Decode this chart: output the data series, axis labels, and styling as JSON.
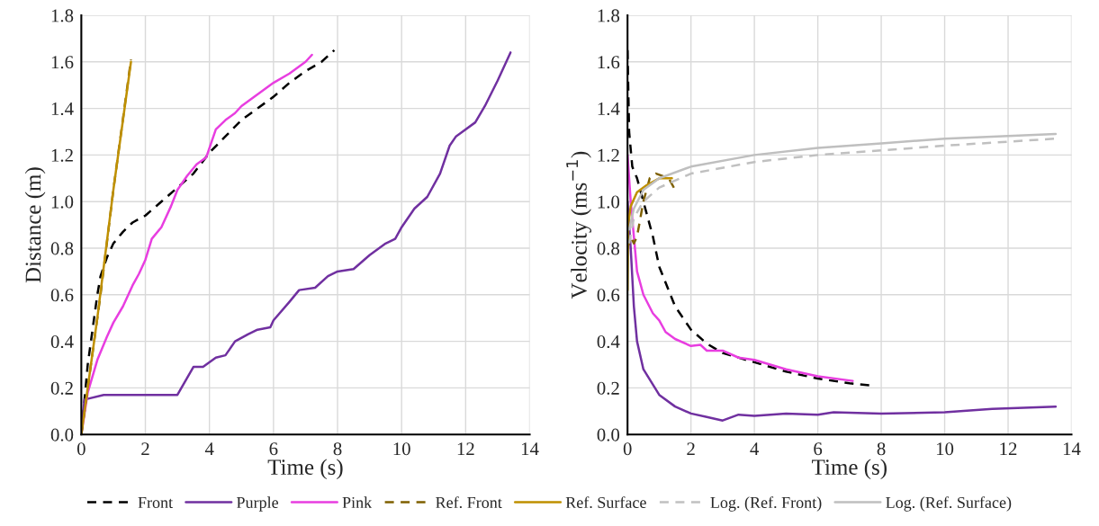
{
  "chart_data": [
    {
      "type": "line",
      "xlabel": "Time (s)",
      "ylabel": "Distance (m)",
      "xlim": [
        0,
        14
      ],
      "ylim": [
        0,
        1.8
      ],
      "xticks": [
        0,
        2,
        4,
        6,
        8,
        10,
        12,
        14
      ],
      "yticks": [
        {
          "value": 0,
          "label": "0.0"
        },
        {
          "value": 0.2,
          "label": "0.2"
        },
        {
          "value": 0.4,
          "label": "0.4"
        },
        {
          "value": 0.6,
          "label": "0.6"
        },
        {
          "value": 0.8,
          "label": "0.8"
        },
        {
          "value": 1.0,
          "label": "1.0"
        },
        {
          "value": 1.2,
          "label": "1.2"
        },
        {
          "value": 1.4,
          "label": "1.4"
        },
        {
          "value": 1.6,
          "label": "1.6"
        },
        {
          "value": 1.8,
          "label": "1.8"
        }
      ],
      "grid": true,
      "legend": "bottom",
      "marker": "none",
      "series": [
        {
          "name": "Front",
          "color": "#000000",
          "line_style": "dashed",
          "x": [
            0,
            0.1,
            0.2,
            0.4,
            0.5,
            0.6,
            0.8,
            1.0,
            1.3,
            1.6,
            2.0,
            2.5,
            3.0,
            3.5,
            4.0,
            4.5,
            5.0,
            5.5,
            6.0,
            6.5,
            7.0,
            7.5,
            7.9
          ],
          "values": [
            0,
            0.15,
            0.3,
            0.5,
            0.6,
            0.68,
            0.76,
            0.82,
            0.87,
            0.91,
            0.94,
            1.0,
            1.06,
            1.12,
            1.21,
            1.28,
            1.35,
            1.4,
            1.45,
            1.51,
            1.56,
            1.6,
            1.65
          ]
        },
        {
          "name": "Purple",
          "color": "#7030a0",
          "line_style": "solid",
          "x": [
            0,
            0.1,
            0.7,
            3.0,
            3.5,
            3.8,
            4.2,
            4.5,
            4.8,
            5.2,
            5.5,
            5.9,
            6.0,
            6.5,
            6.8,
            7.3,
            7.7,
            8.0,
            8.5,
            9.0,
            9.5,
            9.8,
            10.0,
            10.4,
            10.8,
            11.2,
            11.5,
            11.7,
            12.3,
            12.6,
            13.0,
            13.4
          ],
          "values": [
            0.02,
            0.15,
            0.17,
            0.17,
            0.29,
            0.29,
            0.33,
            0.34,
            0.4,
            0.43,
            0.45,
            0.46,
            0.49,
            0.57,
            0.62,
            0.63,
            0.68,
            0.7,
            0.71,
            0.77,
            0.82,
            0.84,
            0.89,
            0.97,
            1.02,
            1.12,
            1.24,
            1.28,
            1.34,
            1.41,
            1.52,
            1.64
          ]
        },
        {
          "name": "Pink",
          "color": "#e83ee0",
          "line_style": "solid",
          "x": [
            0,
            0.2,
            0.5,
            0.8,
            1.0,
            1.3,
            1.6,
            1.8,
            2.0,
            2.2,
            2.5,
            2.8,
            3.0,
            3.3,
            3.6,
            3.9,
            4.0,
            4.2,
            4.5,
            4.8,
            5.0,
            5.5,
            6.0,
            6.5,
            7.0,
            7.2
          ],
          "values": [
            0,
            0.18,
            0.32,
            0.42,
            0.48,
            0.55,
            0.64,
            0.69,
            0.75,
            0.84,
            0.89,
            0.98,
            1.05,
            1.11,
            1.16,
            1.19,
            1.23,
            1.31,
            1.35,
            1.38,
            1.41,
            1.46,
            1.51,
            1.55,
            1.6,
            1.63
          ]
        },
        {
          "name": "Ref. Front",
          "color": "#7f6000",
          "line_style": "dashed",
          "x": [
            0,
            0.3,
            0.6,
            1.0,
            1.55
          ],
          "values": [
            0,
            0.3,
            0.6,
            1.05,
            1.61
          ]
        },
        {
          "name": "Ref. Surface",
          "color": "#bf9000",
          "line_style": "solid",
          "x": [
            0,
            0.5,
            1.0,
            1.55
          ],
          "values": [
            0,
            0.5,
            1.05,
            1.6
          ]
        }
      ]
    },
    {
      "type": "line",
      "xlabel": "Time (s)",
      "ylabel": "Velocity (ms$^{−1}$)",
      "xlim": [
        0,
        14
      ],
      "ylim": [
        0,
        1.8
      ],
      "xticks": [
        0,
        2,
        4,
        6,
        8,
        10,
        12,
        14
      ],
      "yticks": [
        {
          "value": 0,
          "label": "0.0"
        },
        {
          "value": 0.2,
          "label": "0.2"
        },
        {
          "value": 0.4,
          "label": "0.4"
        },
        {
          "value": 0.6,
          "label": "0.6"
        },
        {
          "value": 0.8,
          "label": "0.8"
        },
        {
          "value": 1.0,
          "label": "1.0"
        },
        {
          "value": 1.2,
          "label": "1.2"
        },
        {
          "value": 1.4,
          "label": "1.4"
        },
        {
          "value": 1.6,
          "label": "1.6"
        },
        {
          "value": 1.8,
          "label": "1.8"
        }
      ],
      "grid": true,
      "legend": "bottom",
      "marker": "none",
      "series": [
        {
          "name": "Front",
          "color": "#000000",
          "line_style": "dashed",
          "x": [
            0,
            0.05,
            0.15,
            0.3,
            0.5,
            0.8,
            1.0,
            1.5,
            2.0,
            2.5,
            3.0,
            4.0,
            5.0,
            6.0,
            7.0,
            7.7
          ],
          "values": [
            1.65,
            1.3,
            1.15,
            1.1,
            1.0,
            0.85,
            0.72,
            0.55,
            0.45,
            0.39,
            0.35,
            0.31,
            0.27,
            0.24,
            0.22,
            0.21
          ]
        },
        {
          "name": "Purple",
          "color": "#7030a0",
          "line_style": "solid",
          "x": [
            0,
            0.1,
            0.2,
            0.3,
            0.5,
            1.0,
            1.5,
            2.0,
            2.5,
            3.0,
            3.5,
            4.0,
            5.0,
            6.0,
            6.5,
            8.0,
            10.0,
            11.5,
            13.5
          ],
          "values": [
            1.0,
            0.8,
            0.55,
            0.4,
            0.28,
            0.17,
            0.12,
            0.09,
            0.075,
            0.06,
            0.085,
            0.08,
            0.09,
            0.085,
            0.095,
            0.09,
            0.095,
            0.11,
            0.12
          ]
        },
        {
          "name": "Pink",
          "color": "#e83ee0",
          "line_style": "solid",
          "x": [
            0,
            0.1,
            0.3,
            0.5,
            0.8,
            1.0,
            1.2,
            1.5,
            2.0,
            2.3,
            2.5,
            3.0,
            3.5,
            4.0,
            4.5,
            5.0,
            6.0,
            7.1
          ],
          "values": [
            1.2,
            1.0,
            0.7,
            0.6,
            0.52,
            0.49,
            0.44,
            0.41,
            0.38,
            0.385,
            0.36,
            0.36,
            0.33,
            0.32,
            0.3,
            0.28,
            0.25,
            0.23
          ]
        },
        {
          "name": "Ref. Front",
          "color": "#7f6000",
          "line_style": "dashed",
          "x": [
            0,
            0.1,
            0.2,
            0.3,
            0.5,
            0.7,
            0.9,
            1.1,
            1.3,
            1.5
          ],
          "values": [
            0.8,
            0.85,
            0.82,
            0.85,
            1.0,
            1.1,
            1.12,
            1.11,
            1.1,
            1.05
          ]
        },
        {
          "name": "Ref. Surface",
          "color": "#bf9000",
          "line_style": "solid",
          "x": [
            0,
            0.02,
            0.1,
            0.3,
            0.6,
            1.0,
            1.4
          ],
          "values": [
            0.62,
            0.9,
            0.98,
            1.04,
            1.07,
            1.1,
            1.1
          ]
        },
        {
          "name": "Log. (Ref. Front)",
          "color": "#c0c0c0",
          "line_style": "dashed",
          "x": [
            0.05,
            0.2,
            0.5,
            1,
            2,
            4,
            6,
            8,
            10,
            13.5
          ],
          "values": [
            0.82,
            0.93,
            1.0,
            1.06,
            1.12,
            1.17,
            1.2,
            1.22,
            1.24,
            1.27
          ]
        },
        {
          "name": "Log. (Ref. Surface)",
          "color": "#bfbfbf",
          "line_style": "solid",
          "x": [
            0.05,
            0.2,
            0.5,
            1,
            2,
            4,
            6,
            8,
            10,
            13.5
          ],
          "values": [
            0.88,
            0.97,
            1.05,
            1.1,
            1.15,
            1.2,
            1.23,
            1.25,
            1.27,
            1.29
          ]
        }
      ]
    }
  ]
}
